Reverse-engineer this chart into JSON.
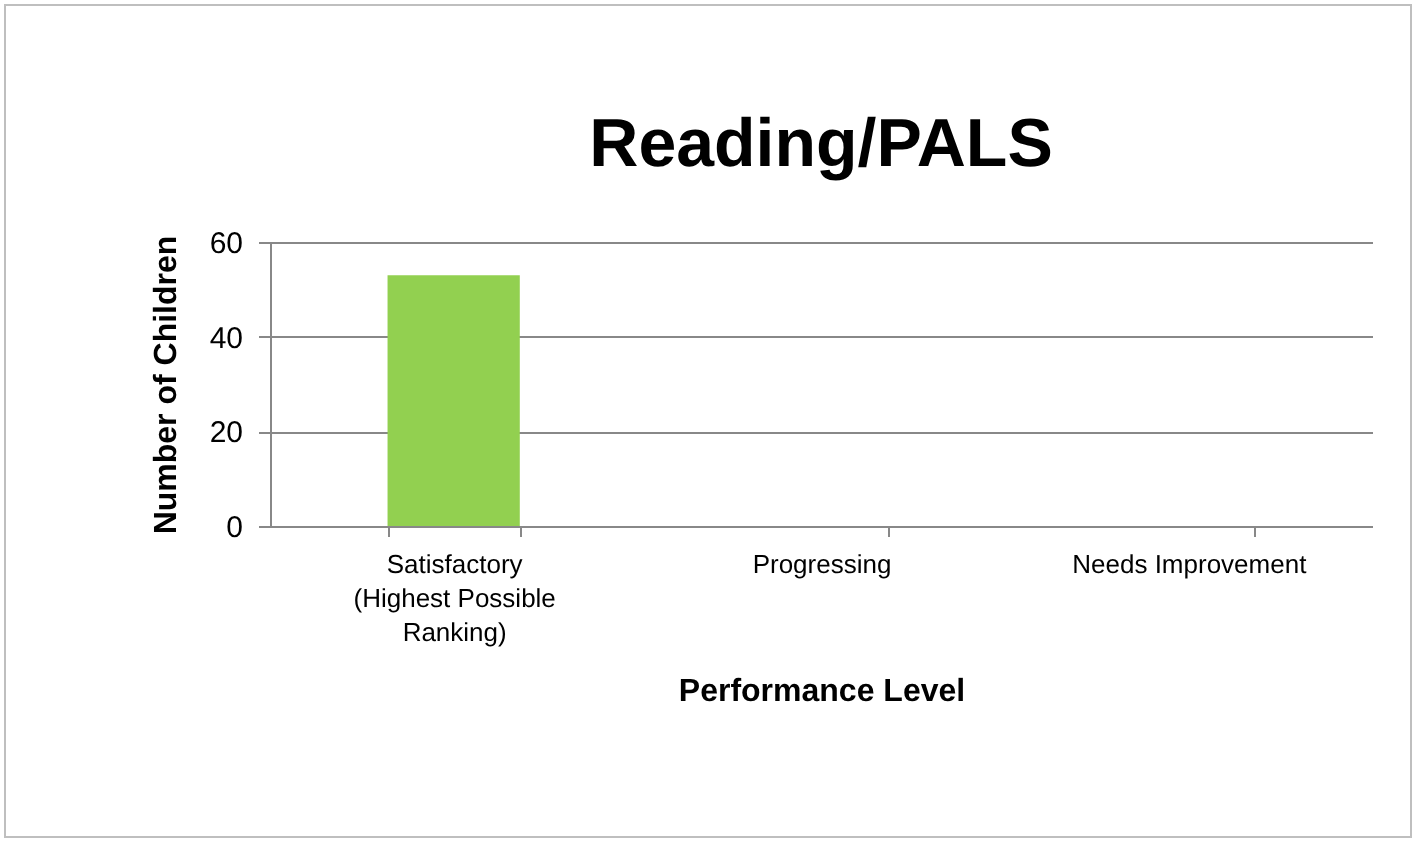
{
  "chart_data": {
    "type": "bar",
    "title": "Reading/PALS",
    "xlabel": "Performance Level",
    "ylabel": "Number of Children",
    "categories": [
      "Satisfactory (Highest Possible Ranking)",
      "Progressing",
      "Needs Improvement"
    ],
    "values": [
      53,
      0,
      0
    ],
    "color": "#92d050",
    "ylim": [
      0,
      60
    ],
    "yticks": [
      0,
      20,
      40,
      60
    ],
    "grid": "y"
  }
}
